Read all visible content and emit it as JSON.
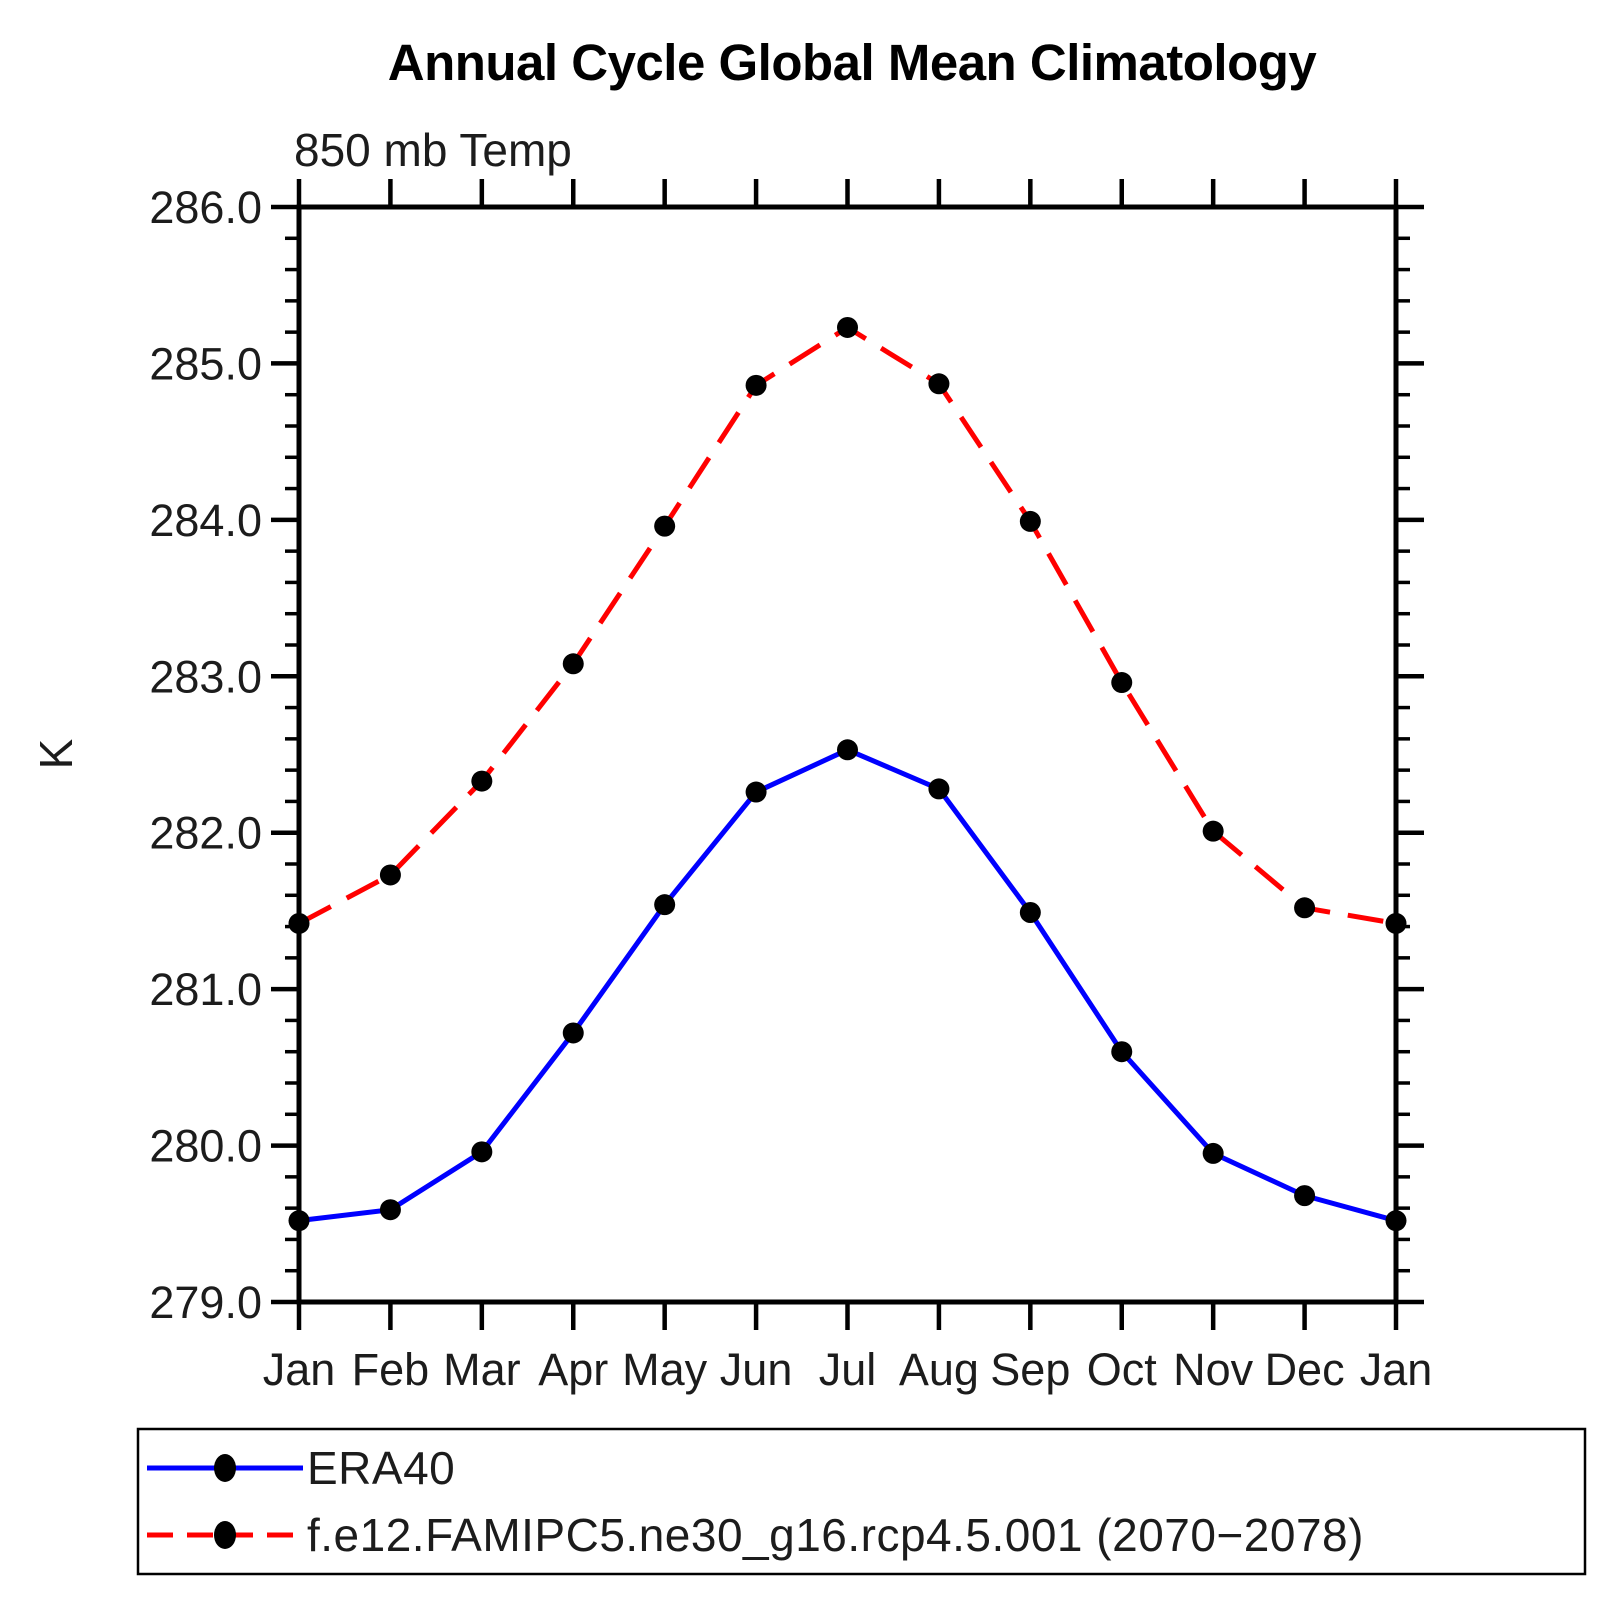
{
  "page": {
    "background": "#ffffff"
  },
  "chart_data": {
    "type": "line",
    "title": "Annual Cycle Global Mean Climatology",
    "subtitle": "850 mb Temp",
    "ylabel": "K",
    "xlabel": "",
    "x_categories": [
      "Jan",
      "Feb",
      "Mar",
      "Apr",
      "May",
      "Jun",
      "Jul",
      "Aug",
      "Sep",
      "Oct",
      "Nov",
      "Dec",
      "Jan"
    ],
    "ylim": [
      279.0,
      286.0
    ],
    "ytick_interval": 1.0,
    "ytick_minor_interval": 0.2,
    "ytick_labels": [
      "286.0",
      "285.0",
      "284.0",
      "283.0",
      "282.0",
      "281.0",
      "280.0",
      "279.0"
    ],
    "grid": false,
    "legend_position": "below-chart",
    "axis_color": "#000000",
    "marker_color": "#000000",
    "marker_shape": "filled-circle",
    "series": [
      {
        "name": "ERA40",
        "color": "#0000ff",
        "line_style": "solid",
        "values": [
          279.52,
          279.59,
          279.96,
          280.72,
          281.54,
          282.26,
          282.53,
          282.28,
          281.49,
          280.6,
          279.95,
          279.68,
          279.52
        ]
      },
      {
        "name": "f.e12.FAMIPC5.ne30_g16.rcp4.5.001 (2070−2078)",
        "color": "#ff0000",
        "line_style": "dashed",
        "values": [
          281.42,
          281.73,
          282.33,
          283.08,
          283.96,
          284.86,
          285.23,
          284.87,
          283.99,
          282.96,
          282.01,
          281.52,
          281.42
        ]
      }
    ]
  }
}
